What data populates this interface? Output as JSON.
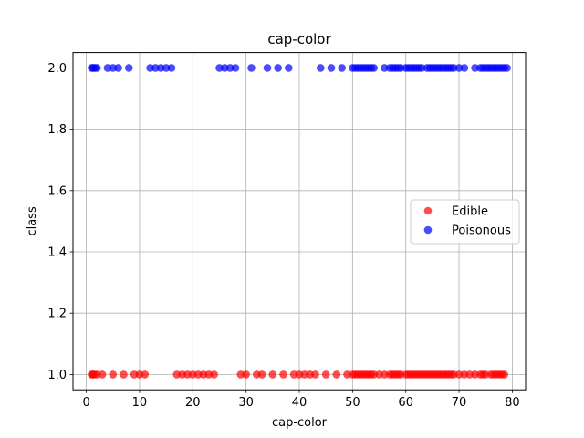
{
  "chart_data": {
    "type": "scatter",
    "title": "cap-color",
    "xlabel": "cap-color",
    "ylabel": "class",
    "xlim": [
      -2.5,
      82.5
    ],
    "ylim": [
      0.95,
      2.05
    ],
    "x_ticks": [
      0,
      10,
      20,
      30,
      40,
      50,
      60,
      70,
      80
    ],
    "x_tick_labels": [
      "0",
      "10",
      "20",
      "30",
      "40",
      "50",
      "60",
      "70",
      "80"
    ],
    "y_ticks": [
      1.0,
      1.2,
      1.4,
      1.6,
      1.8,
      2.0
    ],
    "y_tick_labels": [
      "1.0",
      "1.2",
      "1.4",
      "1.6",
      "1.8",
      "2.0"
    ],
    "grid": true,
    "legend_position": "center-right",
    "series": [
      {
        "name": "Edible",
        "color": "#ff0000",
        "y": 1.0,
        "x": [
          1,
          1.2,
          1.5,
          2,
          3,
          5,
          7,
          9,
          10,
          11,
          17,
          18,
          19,
          20,
          21,
          22,
          23,
          24,
          29,
          30,
          32,
          33,
          35,
          37,
          39,
          40,
          41,
          42,
          43,
          45,
          47,
          49,
          50,
          50.5,
          51,
          51.5,
          52,
          52.5,
          53,
          53.5,
          54,
          55,
          56,
          57,
          57.5,
          58,
          58.5,
          59,
          60,
          60.5,
          61,
          61.5,
          62,
          62.5,
          63,
          63.5,
          64,
          64.5,
          65,
          65.5,
          66,
          66.5,
          67,
          67.5,
          68,
          68.5,
          69,
          70,
          71,
          72,
          73,
          74,
          74.5,
          75,
          76,
          76.5,
          77,
          77.5,
          78,
          78.5
        ]
      },
      {
        "name": "Poisonous",
        "color": "#0000ff",
        "y": 2.0,
        "x": [
          1,
          1.3,
          1.6,
          2,
          4,
          5,
          6,
          8,
          12,
          13,
          14,
          15,
          16,
          25,
          26,
          27,
          28,
          31,
          34,
          36,
          38,
          44,
          46,
          48,
          50,
          50.5,
          51,
          51.5,
          52,
          52.5,
          53,
          53.5,
          54,
          56,
          57,
          57.5,
          58,
          58.5,
          59,
          60,
          60.5,
          61,
          61.5,
          62,
          62.5,
          63,
          64,
          64.5,
          65,
          65.5,
          66,
          66.5,
          67,
          67.5,
          68,
          68.5,
          69,
          70,
          71,
          73,
          74,
          74.5,
          75,
          75.5,
          76,
          76.5,
          77,
          77.5,
          78,
          78.5,
          79
        ]
      }
    ]
  }
}
